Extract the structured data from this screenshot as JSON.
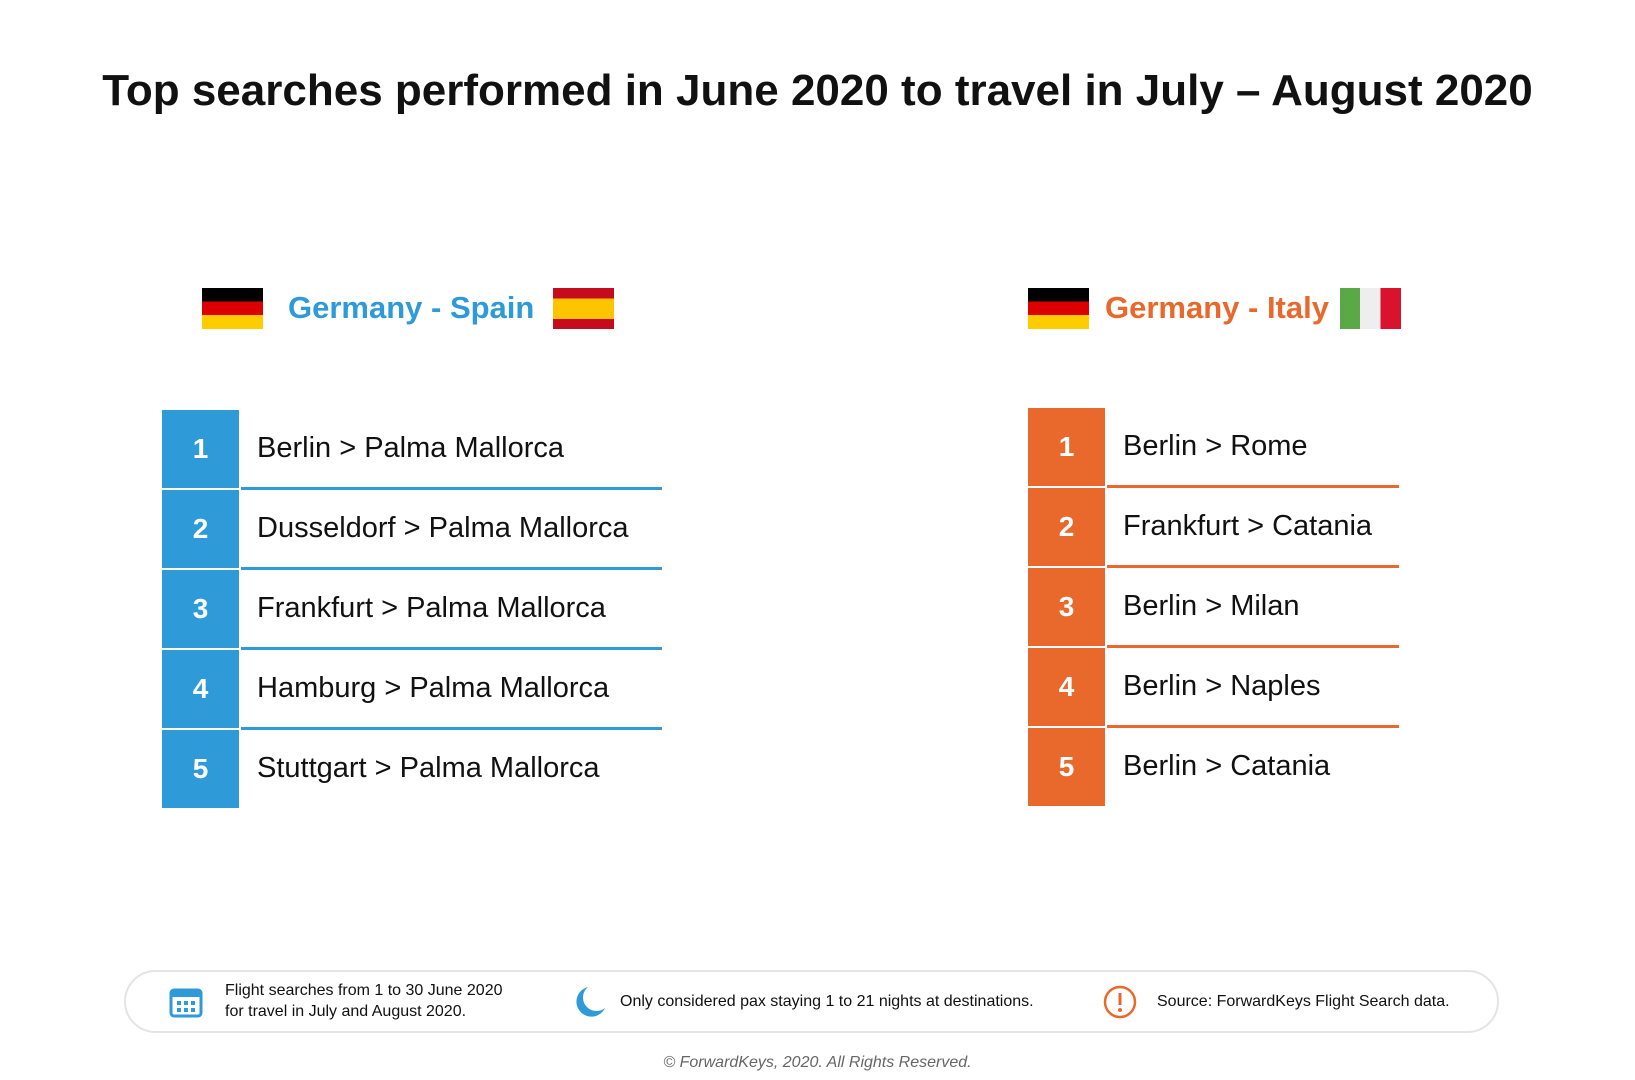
{
  "title": "Top searches performed in June 2020 to travel in July – August 2020",
  "panels": [
    {
      "heading": "Germany - Spain",
      "items": [
        {
          "rank": "1",
          "route": "Berlin > Palma Mallorca"
        },
        {
          "rank": "2",
          "route": "Dusseldorf > Palma Mallorca"
        },
        {
          "rank": "3",
          "route": "Frankfurt > Palma Mallorca"
        },
        {
          "rank": "4",
          "route": "Hamburg > Palma Mallorca"
        },
        {
          "rank": "5",
          "route": "Stuttgart > Palma Mallorca"
        }
      ]
    },
    {
      "heading": "Germany - Italy",
      "items": [
        {
          "rank": "1",
          "route": "Berlin > Rome"
        },
        {
          "rank": "2",
          "route": "Frankfurt > Catania"
        },
        {
          "rank": "3",
          "route": "Berlin > Milan"
        },
        {
          "rank": "4",
          "route": "Berlin > Naples"
        },
        {
          "rank": "5",
          "route": "Berlin > Catania"
        }
      ]
    }
  ],
  "footer": {
    "notes": [
      "Flight searches from 1 to 30 June 2020",
      "for travel in July and August 2020.",
      "Only considered pax staying 1 to 21 nights at destinations.",
      "Source: ForwardKeys Flight Search data."
    ],
    "copyright": "© ForwardKeys, 2020. All Rights Reserved."
  }
}
